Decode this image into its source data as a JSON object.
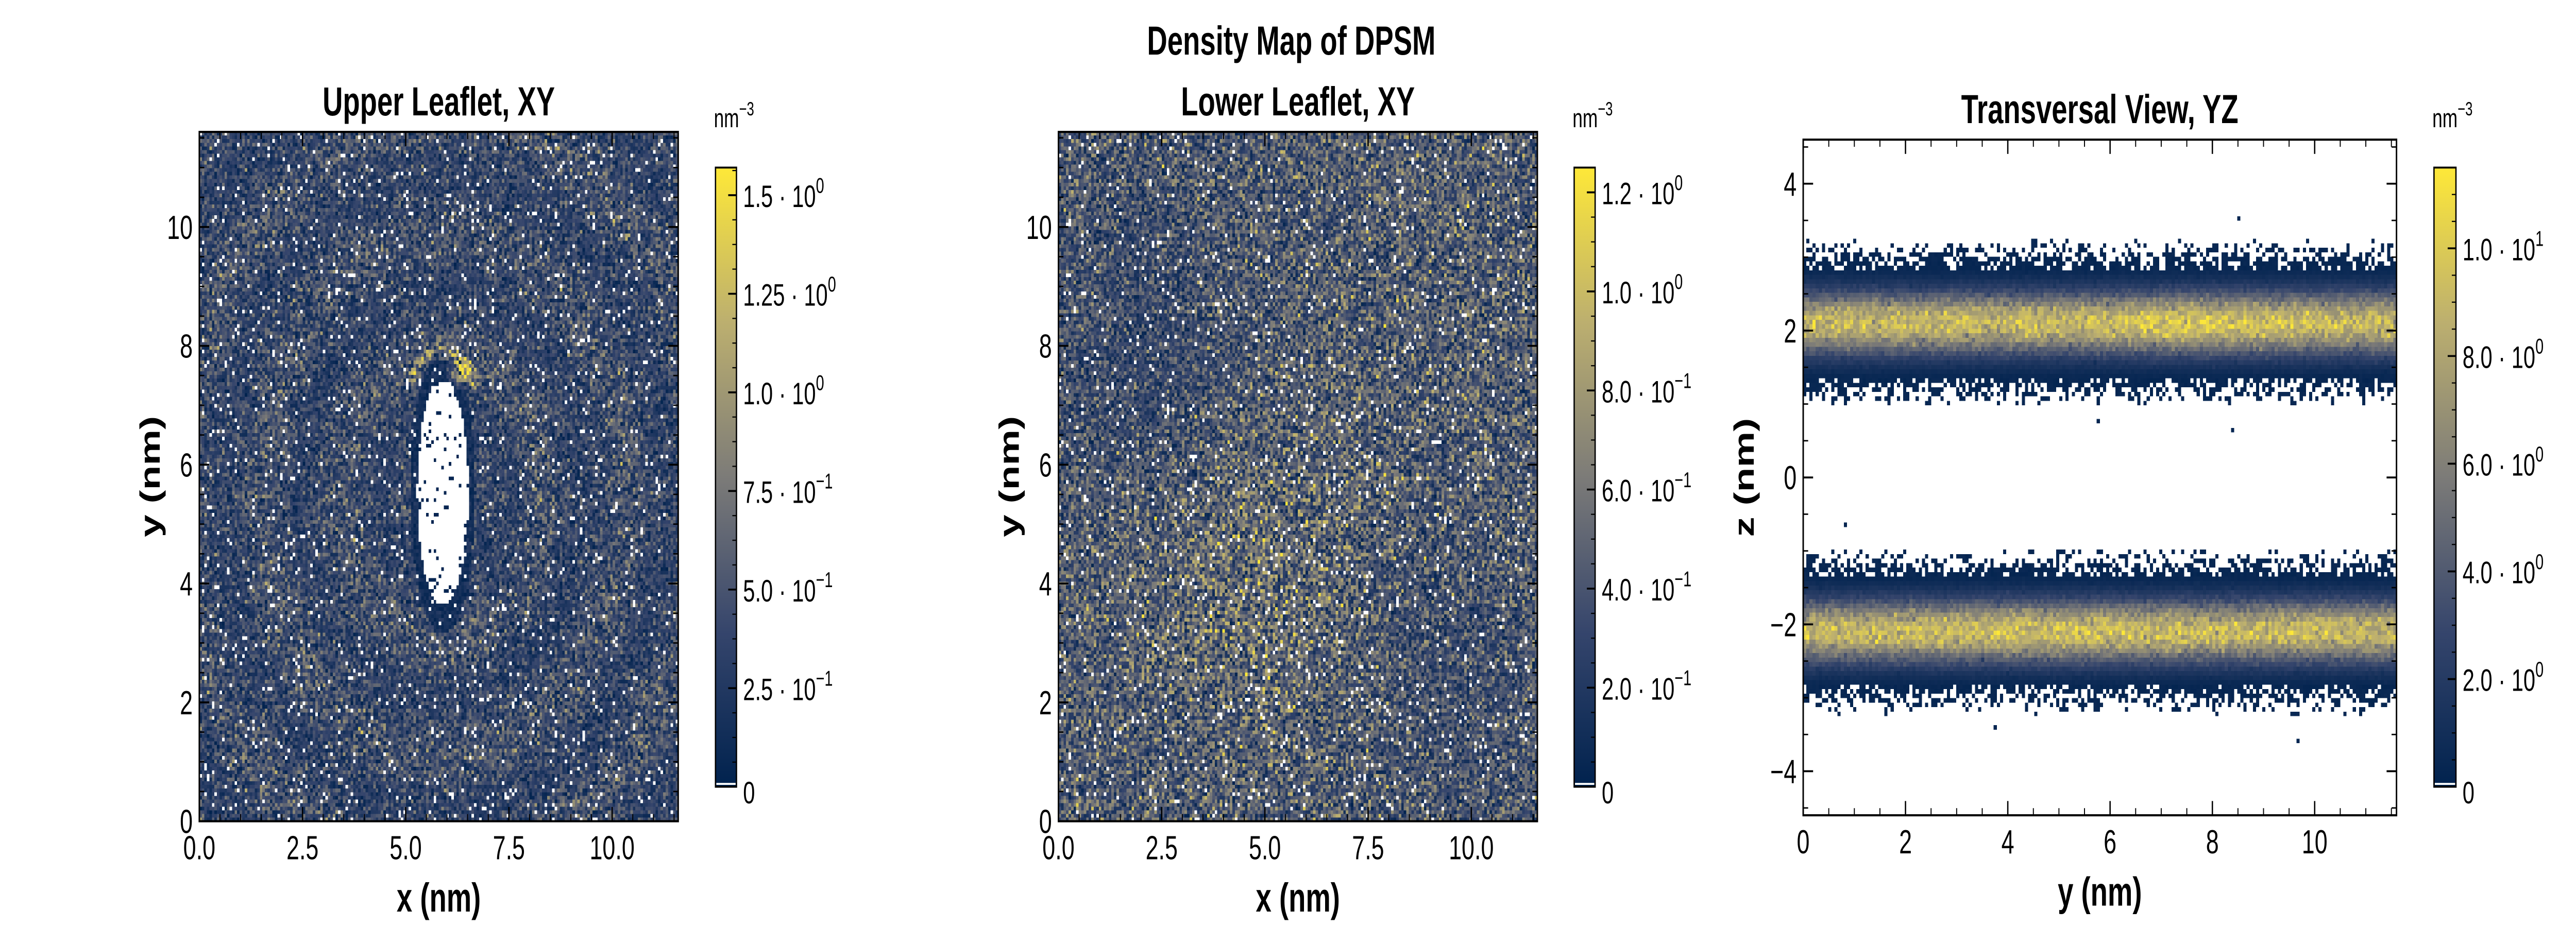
{
  "suptitle": "Density Map of DPSM",
  "colors": {
    "cmap": [
      "#00224e",
      "#35456c",
      "#7c7b78",
      "#bcaf6f",
      "#fee838"
    ],
    "empty_bin": "#ffffff"
  },
  "chart_data": [
    {
      "type": "heatmap",
      "title": "Upper Leaflet, XY",
      "xlabel": "x (nm)",
      "ylabel": "y (nm)",
      "xlim": [
        0,
        11.6
      ],
      "ylim": [
        0,
        11.6
      ],
      "xticks": [
        0,
        2.5,
        5,
        7.5,
        10
      ],
      "xtick_labels": [
        "0.0",
        "2.5",
        "5.0",
        "7.5",
        "10.0"
      ],
      "yticks": [
        0,
        2,
        4,
        6,
        8,
        10
      ],
      "ytick_labels": [
        "0",
        "2",
        "4",
        "6",
        "8",
        "10"
      ],
      "colorbar": {
        "unit": "nm",
        "unit_exp": "−3",
        "vmin": 0,
        "vmax": 1.57,
        "ticks": [
          0,
          0.25,
          0.5,
          0.75,
          1.0,
          1.25,
          1.5
        ],
        "tick_labels": [
          {
            "m": "0",
            "e": ""
          },
          {
            "m": "2.5 · 10",
            "e": "−1"
          },
          {
            "m": "5.0 · 10",
            "e": "−1"
          },
          {
            "m": "7.5 · 10",
            "e": "−1"
          },
          {
            "m": "1.0 · 10",
            "e": "0"
          },
          {
            "m": "1.25 · 10",
            "e": "0"
          },
          {
            "m": "1.5 · 10",
            "e": "0"
          }
        ]
      },
      "mean_density": 0.4,
      "empty_region_center": [
        5.9,
        5.5
      ],
      "hotspot": [
        6.3,
        7.6
      ]
    },
    {
      "type": "heatmap",
      "title": "Lower Leaflet, XY",
      "xlabel": "x (nm)",
      "ylabel": "y (nm)",
      "xlim": [
        0,
        11.6
      ],
      "ylim": [
        0,
        11.6
      ],
      "xticks": [
        0,
        2.5,
        5,
        7.5,
        10
      ],
      "xtick_labels": [
        "0.0",
        "2.5",
        "5.0",
        "7.5",
        "10.0"
      ],
      "yticks": [
        0,
        2,
        4,
        6,
        8,
        10
      ],
      "ytick_labels": [
        "0",
        "2",
        "4",
        "6",
        "8",
        "10"
      ],
      "colorbar": {
        "unit": "nm",
        "unit_exp": "−3",
        "vmin": 0,
        "vmax": 1.25,
        "ticks": [
          0,
          0.2,
          0.4,
          0.6,
          0.8,
          1.0,
          1.2
        ],
        "tick_labels": [
          {
            "m": "0",
            "e": ""
          },
          {
            "m": "2.0 · 10",
            "e": "−1"
          },
          {
            "m": "4.0 · 10",
            "e": "−1"
          },
          {
            "m": "6.0 · 10",
            "e": "−1"
          },
          {
            "m": "8.0 · 10",
            "e": "−1"
          },
          {
            "m": "1.0 · 10",
            "e": "0"
          },
          {
            "m": "1.2 · 10",
            "e": "0"
          }
        ]
      },
      "mean_density": 0.45
    },
    {
      "type": "heatmap",
      "title": "Transversal View, YZ",
      "xlabel": "y (nm)",
      "ylabel": "z (nm)",
      "xlim": [
        0,
        11.6
      ],
      "ylim": [
        -4.6,
        4.6
      ],
      "xticks": [
        0,
        2,
        4,
        6,
        8,
        10
      ],
      "xtick_labels": [
        "0",
        "2",
        "4",
        "6",
        "8",
        "10"
      ],
      "yticks": [
        -4,
        -2,
        0,
        2,
        4
      ],
      "ytick_labels": [
        "−4",
        "−2",
        "0",
        "2",
        "4"
      ],
      "colorbar": {
        "unit": "nm",
        "unit_exp": "−3",
        "vmin": 0,
        "vmax": 11.5,
        "ticks": [
          0,
          2,
          4,
          6,
          8,
          10
        ],
        "tick_labels": [
          {
            "m": "0",
            "e": ""
          },
          {
            "m": "2.0 · 10",
            "e": "0"
          },
          {
            "m": "4.0 · 10",
            "e": "0"
          },
          {
            "m": "6.0 · 10",
            "e": "0"
          },
          {
            "m": "8.0 · 10",
            "e": "0"
          },
          {
            "m": "1.0 · 10",
            "e": "1"
          }
        ]
      },
      "leaflet_centers_z": [
        2.1,
        -2.1
      ],
      "peak_density": 9.5
    }
  ]
}
